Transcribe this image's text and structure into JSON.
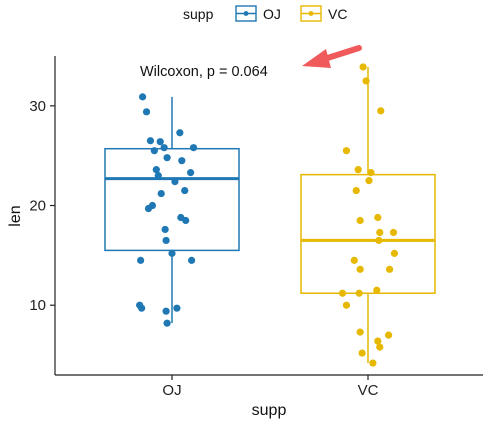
{
  "chart_data": {
    "type": "boxplot",
    "title": "",
    "xlabel": "supp",
    "ylabel": "len",
    "categories": [
      "OJ",
      "VC"
    ],
    "ylim": [
      3,
      35
    ],
    "yticks": [
      10,
      20,
      30
    ],
    "legend": {
      "title": "supp",
      "position": "top",
      "entries": [
        {
          "name": "OJ",
          "color": "#1f78b4"
        },
        {
          "name": "VC",
          "color": "#e6b800"
        }
      ]
    },
    "annotation": {
      "text": "Wilcoxon, p = 0.064",
      "arrow_color": "#f05a5a"
    },
    "series": [
      {
        "name": "OJ",
        "color": "#1f78b4",
        "box": {
          "min": 8.2,
          "q1": 15.5,
          "median": 22.7,
          "q3": 25.7,
          "max": 30.9
        },
        "points": [
          [
            -0.3,
            30.9
          ],
          [
            -0.26,
            29.4
          ],
          [
            0.08,
            27.3
          ],
          [
            -0.22,
            26.5
          ],
          [
            -0.12,
            26.4
          ],
          [
            -0.08,
            25.8
          ],
          [
            0.22,
            25.8
          ],
          [
            -0.18,
            25.5
          ],
          [
            -0.05,
            24.8
          ],
          [
            0.1,
            24.5
          ],
          [
            -0.16,
            23.6
          ],
          [
            0.19,
            23.3
          ],
          [
            -0.14,
            23.0
          ],
          [
            0.03,
            22.4
          ],
          [
            0.13,
            21.5
          ],
          [
            -0.11,
            21.2
          ],
          [
            -0.2,
            20.0
          ],
          [
            -0.24,
            19.7
          ],
          [
            0.09,
            18.8
          ],
          [
            0.14,
            18.5
          ],
          [
            -0.07,
            17.6
          ],
          [
            -0.06,
            16.5
          ],
          [
            0.0,
            15.2
          ],
          [
            -0.32,
            14.5
          ],
          [
            0.2,
            14.5
          ],
          [
            -0.33,
            10.0
          ],
          [
            -0.31,
            9.7
          ],
          [
            0.05,
            9.7
          ],
          [
            -0.06,
            9.4
          ],
          [
            -0.05,
            8.2
          ]
        ]
      },
      {
        "name": "VC",
        "color": "#e6b800",
        "box": {
          "min": 4.2,
          "q1": 11.2,
          "median": 16.5,
          "q3": 23.1,
          "max": 33.9
        },
        "points": [
          [
            -0.05,
            33.9
          ],
          [
            -0.02,
            32.5
          ],
          [
            0.13,
            29.5
          ],
          [
            -0.22,
            25.5
          ],
          [
            -0.1,
            23.6
          ],
          [
            0.03,
            23.3
          ],
          [
            0.01,
            22.5
          ],
          [
            -0.12,
            21.5
          ],
          [
            0.1,
            18.8
          ],
          [
            -0.08,
            18.5
          ],
          [
            0.26,
            17.3
          ],
          [
            0.12,
            17.3
          ],
          [
            0.11,
            16.5
          ],
          [
            0.27,
            15.2
          ],
          [
            -0.14,
            14.5
          ],
          [
            0.22,
            13.6
          ],
          [
            -0.08,
            13.6
          ],
          [
            0.09,
            11.5
          ],
          [
            -0.26,
            11.2
          ],
          [
            -0.09,
            11.2
          ],
          [
            -0.22,
            10.0
          ],
          [
            -0.08,
            7.3
          ],
          [
            0.21,
            7.0
          ],
          [
            0.1,
            6.4
          ],
          [
            0.12,
            5.8
          ],
          [
            -0.06,
            5.2
          ],
          [
            0.05,
            4.2
          ]
        ]
      }
    ]
  }
}
